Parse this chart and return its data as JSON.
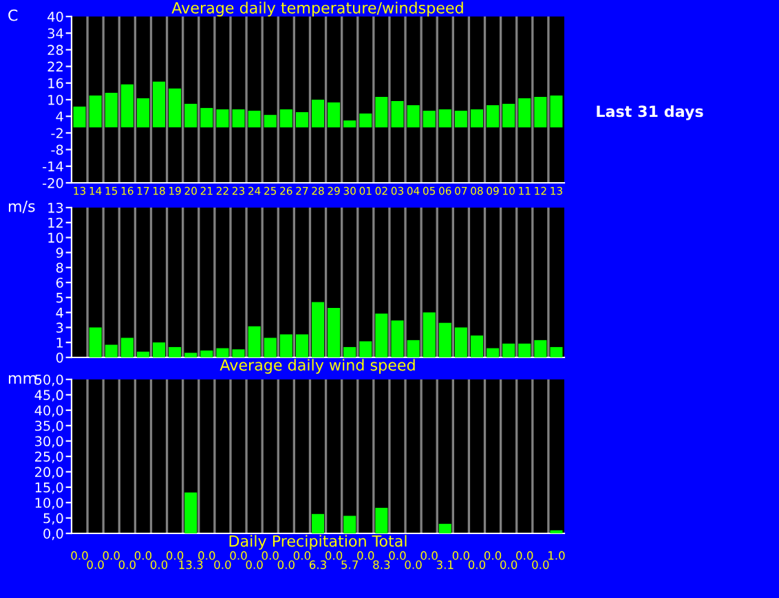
{
  "chart_data": [
    {
      "type": "bar",
      "title": "Average daily temperature/windspeed",
      "ylabel": "C",
      "categories": [
        "13",
        "14",
        "15",
        "16",
        "17",
        "18",
        "19",
        "20",
        "21",
        "22",
        "23",
        "24",
        "25",
        "26",
        "27",
        "28",
        "29",
        "30",
        "01",
        "02",
        "03",
        "04",
        "05",
        "06",
        "07",
        "08",
        "09",
        "10",
        "11",
        "12",
        "13"
      ],
      "series": [
        {
          "color": "#00ff00",
          "values": [
            7.5,
            11.5,
            12.5,
            15.5,
            10.5,
            16.5,
            14,
            8.5,
            7,
            6.5,
            6.5,
            6,
            4.5,
            6.5,
            5.5,
            10,
            9,
            2.5,
            5,
            11,
            9.5,
            8,
            6,
            6.5,
            6,
            6.5,
            8,
            8.5,
            10.5,
            11,
            11.5
          ]
        }
      ],
      "ylim": [
        -20,
        40
      ],
      "yticks": [
        -20,
        -14,
        -8,
        -2,
        4,
        10,
        16,
        22,
        28,
        34,
        40
      ],
      "grid": "x",
      "annotations": [
        "Last 31 days"
      ]
    },
    {
      "type": "bar",
      "xlabel": "Average daily wind speed",
      "ylabel": "m/s",
      "categories": [
        "13",
        "14",
        "15",
        "16",
        "17",
        "18",
        "19",
        "20",
        "21",
        "22",
        "23",
        "24",
        "25",
        "26",
        "27",
        "28",
        "29",
        "30",
        "01",
        "02",
        "03",
        "04",
        "05",
        "06",
        "07",
        "08",
        "09",
        "10",
        "11",
        "12",
        "13"
      ],
      "series": [
        {
          "color": "#00ff00",
          "values": [
            0,
            2.6,
            1.1,
            1.7,
            0.5,
            1.3,
            0.9,
            0.4,
            0.6,
            0.8,
            0.7,
            2.7,
            1.7,
            2,
            2,
            4.8,
            4.3,
            0.9,
            1.4,
            3.8,
            3.2,
            1.5,
            3.9,
            3,
            2.6,
            1.9,
            0.8,
            1.2,
            1.2,
            1.5,
            0.9
          ]
        }
      ],
      "ylim": [
        0,
        13
      ],
      "yticks": [
        0,
        {
          "value": 1.3,
          "label": "1"
        },
        {
          "value": 2.6,
          "label": "3"
        },
        {
          "value": 3.9,
          "label": "4"
        },
        {
          "value": 5.2,
          "label": "5"
        },
        {
          "value": 6.5,
          "label": "6"
        },
        {
          "value": 7.8,
          "label": "8"
        },
        {
          "value": 9.1,
          "label": "9"
        },
        {
          "value": 10.4,
          "label": "10"
        },
        {
          "value": 11.7,
          "label": "12"
        },
        13
      ],
      "grid": "x",
      "tick_labels": "y"
    },
    {
      "type": "bar",
      "xlabel": "Daily Precipitation Total",
      "ylabel": "mm",
      "categories": [
        "13",
        "14",
        "15",
        "16",
        "17",
        "18",
        "19",
        "20",
        "21",
        "22",
        "23",
        "24",
        "25",
        "26",
        "27",
        "28",
        "29",
        "30",
        "01",
        "02",
        "03",
        "04",
        "05",
        "06",
        "07",
        "08",
        "09",
        "10",
        "11",
        "12",
        "13"
      ],
      "series": [
        {
          "color": "#00ff00",
          "values": [
            0,
            0,
            0,
            0,
            0,
            0,
            0,
            13.3,
            0,
            0,
            0,
            0,
            0,
            0,
            0,
            6.3,
            0,
            5.7,
            0,
            8.3,
            0,
            0,
            0,
            3.1,
            0,
            0,
            0,
            0,
            0,
            0,
            1.0
          ],
          "value_labels": [
            "0.0",
            "0.0",
            "0.0",
            "0.0",
            "0.0",
            "0.0",
            "0.0",
            "13.3",
            "0.0",
            "0.0",
            "0.0",
            "0.0",
            "0.0",
            "0.0",
            "0.0",
            "6.3",
            "0.0",
            "5.7",
            "0.0",
            "8.3",
            "0.0",
            "0.0",
            "0.0",
            "3.1",
            "0.0",
            "0.0",
            "0.0",
            "0.0",
            "0.0",
            "0.0",
            "1.0"
          ]
        }
      ],
      "ylim": [
        0,
        50
      ],
      "yticks": [
        {
          "value": 0,
          "label": "0,0"
        },
        {
          "value": 5,
          "label": "5,0"
        },
        {
          "value": 10,
          "label": "10,0"
        },
        {
          "value": 15,
          "label": "15,0"
        },
        {
          "value": 20,
          "label": "20,0"
        },
        {
          "value": 25,
          "label": "25,0"
        },
        {
          "value": 30,
          "label": "30,0"
        },
        {
          "value": 35,
          "label": "35,0"
        },
        {
          "value": 40,
          "label": "40,0"
        },
        {
          "value": 45,
          "label": "45,0"
        },
        {
          "value": 50,
          "label": "50,0"
        }
      ],
      "grid": "x",
      "tick_labels": "y"
    }
  ]
}
